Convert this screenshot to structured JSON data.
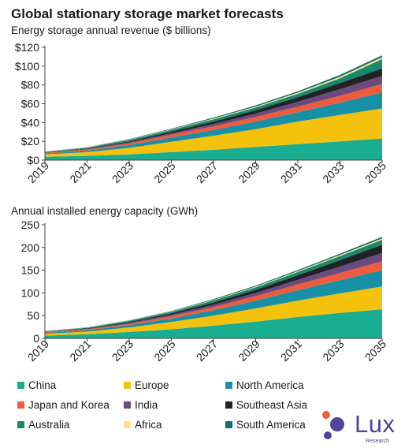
{
  "header": {
    "title": "Global stationary storage market forecasts"
  },
  "logo": {
    "word": "Lux",
    "sub": "Research"
  },
  "legend": {
    "items": [
      {
        "label": "China",
        "color": "#19ad92"
      },
      {
        "label": "Europe",
        "color": "#f4c20d"
      },
      {
        "label": "North America",
        "color": "#1790a6"
      },
      {
        "label": "Japan and Korea",
        "color": "#ee5b3d"
      },
      {
        "label": "India",
        "color": "#6b4a80"
      },
      {
        "label": "Southeast Asia",
        "color": "#222226"
      },
      {
        "label": "Australia",
        "color": "#168a6a"
      },
      {
        "label": "Africa",
        "color": "#fbe08f"
      },
      {
        "label": "South America",
        "color": "#156a74"
      }
    ]
  },
  "chart_data": [
    {
      "type": "area",
      "stacked": true,
      "subtitle": "Energy storage annual revenue ($ billions)",
      "x": [
        2019,
        2021,
        2023,
        2025,
        2027,
        2029,
        2031,
        2033,
        2035
      ],
      "xtick_labels": [
        "2019",
        "2021",
        "2023",
        "2025",
        "2027",
        "2029",
        "2031",
        "2033",
        "2035"
      ],
      "ytick_labels": [
        "$0",
        "$20",
        "$40",
        "$60",
        "$80",
        "$100",
        "$120"
      ],
      "ylim": [
        0,
        120
      ],
      "grid": false,
      "legend": "bottom",
      "series": [
        {
          "name": "China",
          "values": [
            3.5,
            4.5,
            6,
            8.5,
            11,
            14,
            17,
            20,
            23
          ]
        },
        {
          "name": "Europe",
          "values": [
            2.5,
            4,
            7,
            11,
            15,
            19,
            24,
            28,
            32
          ]
        },
        {
          "name": "North America",
          "values": [
            0.8,
            1.6,
            3,
            4.5,
            6,
            8,
            10,
            13,
            17
          ]
        },
        {
          "name": "Japan and Korea",
          "values": [
            0.8,
            1.2,
            2,
            3,
            4,
            5,
            6,
            7.5,
            9
          ]
        },
        {
          "name": "India",
          "values": [
            0.3,
            0.5,
            1,
            1.5,
            2.5,
            3.5,
            5,
            7,
            8.5
          ]
        },
        {
          "name": "Southeast Asia",
          "values": [
            0.3,
            0.5,
            1,
            1.8,
            2.5,
            3.5,
            5,
            6.5,
            8
          ]
        },
        {
          "name": "Australia",
          "values": [
            0.5,
            1,
            1.5,
            2,
            2.5,
            3,
            3.5,
            5,
            10
          ]
        },
        {
          "name": "Africa",
          "values": [
            0.1,
            0.2,
            0.3,
            0.5,
            0.7,
            1,
            1.3,
            1.8,
            2
          ]
        },
        {
          "name": "South America",
          "values": [
            0.2,
            0.3,
            0.5,
            0.7,
            1,
            1.2,
            1.4,
            1.8,
            2
          ]
        }
      ]
    },
    {
      "type": "area",
      "stacked": true,
      "subtitle": "Annual installed energy capacity (GWh)",
      "x": [
        2019,
        2021,
        2023,
        2025,
        2027,
        2029,
        2031,
        2033,
        2035
      ],
      "xtick_labels": [
        "2019",
        "2021",
        "2023",
        "2025",
        "2027",
        "2029",
        "2031",
        "2033",
        "2035"
      ],
      "ytick_labels": [
        "0",
        "50",
        "100",
        "150",
        "200",
        "250"
      ],
      "ylim": [
        0,
        250
      ],
      "grid": false,
      "legend": "bottom",
      "series": [
        {
          "name": "China",
          "values": [
            6,
            9,
            14,
            20,
            28,
            37,
            47,
            56,
            64
          ]
        },
        {
          "name": "Europe",
          "values": [
            4,
            6,
            10,
            16,
            22,
            29,
            36,
            43,
            50
          ]
        },
        {
          "name": "North America",
          "values": [
            2,
            3,
            5,
            8,
            12,
            17,
            23,
            29,
            36
          ]
        },
        {
          "name": "Japan and Korea",
          "values": [
            1.5,
            2,
            3,
            5,
            7,
            10,
            13,
            16,
            20
          ]
        },
        {
          "name": "India",
          "values": [
            0.5,
            1,
            2,
            3,
            5,
            7,
            10,
            14,
            18
          ]
        },
        {
          "name": "Southeast Asia",
          "values": [
            0.5,
            1,
            2,
            3,
            5,
            7,
            10,
            14,
            18
          ]
        },
        {
          "name": "Australia",
          "values": [
            1,
            1.5,
            2.5,
            3.5,
            4.5,
            5.5,
            7,
            9,
            11
          ]
        },
        {
          "name": "Africa",
          "values": [
            0.2,
            0.3,
            0.5,
            0.8,
            1.2,
            1.6,
            2,
            2.5,
            3
          ]
        },
        {
          "name": "South America",
          "values": [
            0.3,
            0.5,
            0.8,
            1.2,
            1.6,
            2,
            2.4,
            3,
            3.5
          ]
        }
      ]
    }
  ]
}
